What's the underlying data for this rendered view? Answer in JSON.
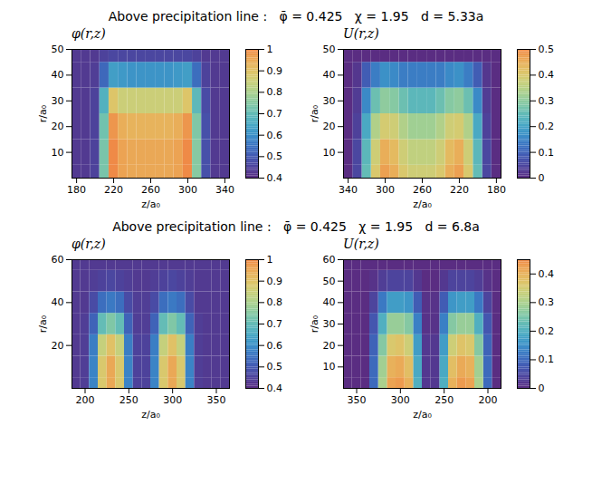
{
  "chart_data": [
    {
      "type": "heatmap",
      "title": "Above precipitation line :   φ̄ = 0.425   χ = 1.95   d = 5.33a",
      "panels": [
        {
          "label": "φ(r,z)",
          "xlabel": "z/a₀",
          "ylabel": "r/a₀",
          "xlim": [
            175,
            345
          ],
          "xticks": [
            180,
            220,
            260,
            300,
            340
          ],
          "ylim": [
            0,
            50
          ],
          "yticks": [
            10,
            20,
            30,
            40,
            50
          ],
          "zlim": [
            0.4,
            1
          ],
          "zticks": [
            0.4,
            0.5,
            0.6,
            0.7,
            0.8,
            0.9,
            1
          ],
          "x": [
            180,
            190,
            200,
            210,
            220,
            230,
            240,
            250,
            260,
            270,
            280,
            290,
            300,
            310,
            320,
            330,
            340
          ],
          "y": [
            0,
            10,
            20,
            30,
            40,
            50
          ],
          "values": [
            [
              0.43,
              0.43,
              0.45,
              0.73,
              1.0,
              0.96,
              0.95,
              0.95,
              0.95,
              0.95,
              0.95,
              0.96,
              1.0,
              0.75,
              0.48,
              0.43,
              0.43
            ],
            [
              0.43,
              0.43,
              0.45,
              0.73,
              1.0,
              0.96,
              0.95,
              0.95,
              0.95,
              0.95,
              0.95,
              0.96,
              1.0,
              0.75,
              0.48,
              0.43,
              0.43
            ],
            [
              0.43,
              0.43,
              0.45,
              0.72,
              0.98,
              0.94,
              0.93,
              0.93,
              0.93,
              0.93,
              0.93,
              0.94,
              0.98,
              0.74,
              0.48,
              0.43,
              0.43
            ],
            [
              0.43,
              0.43,
              0.45,
              0.67,
              0.89,
              0.85,
              0.85,
              0.85,
              0.85,
              0.85,
              0.85,
              0.85,
              0.89,
              0.69,
              0.47,
              0.43,
              0.43
            ],
            [
              0.43,
              0.43,
              0.44,
              0.53,
              0.63,
              0.62,
              0.61,
              0.61,
              0.61,
              0.61,
              0.61,
              0.62,
              0.63,
              0.54,
              0.45,
              0.43,
              0.43
            ],
            [
              0.43,
              0.43,
              0.43,
              0.45,
              0.46,
              0.46,
              0.46,
              0.46,
              0.46,
              0.46,
              0.46,
              0.46,
              0.46,
              0.45,
              0.43,
              0.43,
              0.43
            ]
          ]
        },
        {
          "label": "U(r,z)",
          "xlabel": "z/a₀",
          "ylabel": "r/a₀",
          "xlim": [
            345,
            175
          ],
          "xticks": [
            340,
            300,
            260,
            220,
            180
          ],
          "ylim": [
            0,
            50
          ],
          "yticks": [
            10,
            20,
            30,
            40,
            50
          ],
          "zlim": [
            0,
            0.5
          ],
          "zticks": [
            0,
            0.1,
            0.2,
            0.3,
            0.4,
            0.5
          ],
          "x": [
            180,
            190,
            200,
            210,
            220,
            230,
            240,
            250,
            260,
            270,
            280,
            290,
            300,
            310,
            320,
            330,
            340
          ],
          "y": [
            0,
            10,
            20,
            30,
            40,
            50
          ],
          "values": [
            [
              0,
              0.05,
              0.25,
              0.4,
              0.47,
              0.45,
              0.4,
              0.38,
              0.38,
              0.38,
              0.4,
              0.45,
              0.47,
              0.4,
              0.25,
              0.05,
              0
            ],
            [
              0,
              0.05,
              0.24,
              0.38,
              0.45,
              0.43,
              0.38,
              0.36,
              0.36,
              0.36,
              0.38,
              0.43,
              0.45,
              0.38,
              0.24,
              0.05,
              0
            ],
            [
              0,
              0.04,
              0.21,
              0.34,
              0.39,
              0.38,
              0.34,
              0.32,
              0.32,
              0.32,
              0.34,
              0.38,
              0.39,
              0.34,
              0.21,
              0.04,
              0
            ],
            [
              0,
              0.03,
              0.16,
              0.26,
              0.3,
              0.29,
              0.26,
              0.24,
              0.24,
              0.24,
              0.26,
              0.29,
              0.3,
              0.26,
              0.16,
              0.03,
              0
            ],
            [
              0,
              0.02,
              0.09,
              0.14,
              0.17,
              0.16,
              0.14,
              0.14,
              0.14,
              0.14,
              0.14,
              0.16,
              0.17,
              0.14,
              0.09,
              0.02,
              0
            ],
            [
              0,
              0,
              0,
              0,
              0,
              0,
              0,
              0,
              0,
              0,
              0,
              0,
              0,
              0,
              0,
              0,
              0
            ]
          ]
        }
      ]
    },
    {
      "type": "heatmap",
      "title": "Above precipitation line :   φ̄ = 0.425   χ = 1.95   d = 6.8a",
      "panels": [
        {
          "label": "φ(r,z)",
          "xlabel": "z/a₀",
          "ylabel": "r/a₀",
          "xlim": [
            185,
            365
          ],
          "xticks": [
            200,
            250,
            300,
            350
          ],
          "ylim": [
            0,
            60
          ],
          "yticks": [
            20,
            40,
            60
          ],
          "zlim": [
            0.4,
            1
          ],
          "zticks": [
            0.4,
            0.5,
            0.6,
            0.7,
            0.8,
            0.9,
            1
          ],
          "x": [
            190,
            200,
            210,
            220,
            230,
            240,
            250,
            260,
            270,
            280,
            290,
            300,
            310,
            320,
            330,
            340,
            350,
            360
          ],
          "y": [
            0,
            10,
            20,
            30,
            40,
            50,
            60
          ],
          "values": [
            [
              0.43,
              0.44,
              0.58,
              0.88,
              0.95,
              0.88,
              0.58,
              0.45,
              0.45,
              0.58,
              0.88,
              0.95,
              0.88,
              0.58,
              0.44,
              0.43,
              0.43,
              0.43
            ],
            [
              0.43,
              0.44,
              0.58,
              0.88,
              0.95,
              0.88,
              0.58,
              0.45,
              0.45,
              0.58,
              0.88,
              0.95,
              0.88,
              0.58,
              0.44,
              0.43,
              0.43,
              0.43
            ],
            [
              0.43,
              0.44,
              0.57,
              0.84,
              0.9,
              0.84,
              0.57,
              0.45,
              0.45,
              0.57,
              0.84,
              0.9,
              0.84,
              0.57,
              0.44,
              0.43,
              0.43,
              0.43
            ],
            [
              0.43,
              0.44,
              0.52,
              0.7,
              0.74,
              0.7,
              0.52,
              0.44,
              0.44,
              0.52,
              0.7,
              0.74,
              0.7,
              0.52,
              0.44,
              0.43,
              0.43,
              0.43
            ],
            [
              0.43,
              0.43,
              0.47,
              0.54,
              0.56,
              0.54,
              0.47,
              0.44,
              0.44,
              0.47,
              0.54,
              0.56,
              0.54,
              0.47,
              0.43,
              0.43,
              0.43,
              0.43
            ],
            [
              0.43,
              0.43,
              0.44,
              0.45,
              0.46,
              0.45,
              0.44,
              0.43,
              0.43,
              0.44,
              0.45,
              0.46,
              0.45,
              0.44,
              0.43,
              0.43,
              0.43,
              0.43
            ],
            [
              0.43,
              0.43,
              0.43,
              0.43,
              0.43,
              0.43,
              0.43,
              0.43,
              0.43,
              0.43,
              0.43,
              0.43,
              0.43,
              0.43,
              0.43,
              0.43,
              0.43,
              0.43
            ]
          ]
        },
        {
          "label": "U(r,z)",
          "xlabel": "z/a₀",
          "ylabel": "r/a₀",
          "xlim": [
            365,
            185
          ],
          "xticks": [
            350,
            300,
            250,
            200
          ],
          "ylim": [
            0,
            60
          ],
          "yticks": [
            10,
            20,
            30,
            40,
            50,
            60
          ],
          "zlim": [
            0,
            0.45
          ],
          "zticks": [
            0,
            0.1,
            0.2,
            0.3,
            0.4
          ],
          "x": [
            190,
            200,
            210,
            220,
            230,
            240,
            250,
            260,
            270,
            280,
            290,
            300,
            310,
            320,
            330,
            340,
            350,
            360
          ],
          "y": [
            0,
            10,
            20,
            30,
            40,
            50,
            60
          ],
          "values": [
            [
              0,
              0.1,
              0.3,
              0.42,
              0.43,
              0.4,
              0.2,
              0.02,
              0.02,
              0.2,
              0.4,
              0.43,
              0.42,
              0.3,
              0.1,
              0,
              0,
              0
            ],
            [
              0,
              0.1,
              0.29,
              0.4,
              0.41,
              0.38,
              0.19,
              0.02,
              0.02,
              0.19,
              0.38,
              0.41,
              0.4,
              0.29,
              0.1,
              0,
              0,
              0
            ],
            [
              0,
              0.09,
              0.26,
              0.36,
              0.37,
              0.34,
              0.17,
              0.02,
              0.02,
              0.17,
              0.34,
              0.37,
              0.36,
              0.26,
              0.09,
              0,
              0,
              0
            ],
            [
              0,
              0.07,
              0.2,
              0.28,
              0.28,
              0.26,
              0.13,
              0.01,
              0.01,
              0.13,
              0.26,
              0.28,
              0.28,
              0.2,
              0.07,
              0,
              0,
              0
            ],
            [
              0,
              0.04,
              0.12,
              0.17,
              0.17,
              0.16,
              0.08,
              0.01,
              0.01,
              0.08,
              0.16,
              0.17,
              0.17,
              0.12,
              0.04,
              0,
              0,
              0
            ],
            [
              0,
              0.01,
              0.03,
              0.04,
              0.04,
              0.04,
              0.02,
              0,
              0,
              0.02,
              0.04,
              0.04,
              0.04,
              0.03,
              0.01,
              0,
              0,
              0
            ],
            [
              0,
              0,
              0,
              0,
              0,
              0,
              0,
              0,
              0,
              0,
              0,
              0,
              0,
              0,
              0,
              0,
              0,
              0
            ]
          ]
        }
      ]
    }
  ]
}
